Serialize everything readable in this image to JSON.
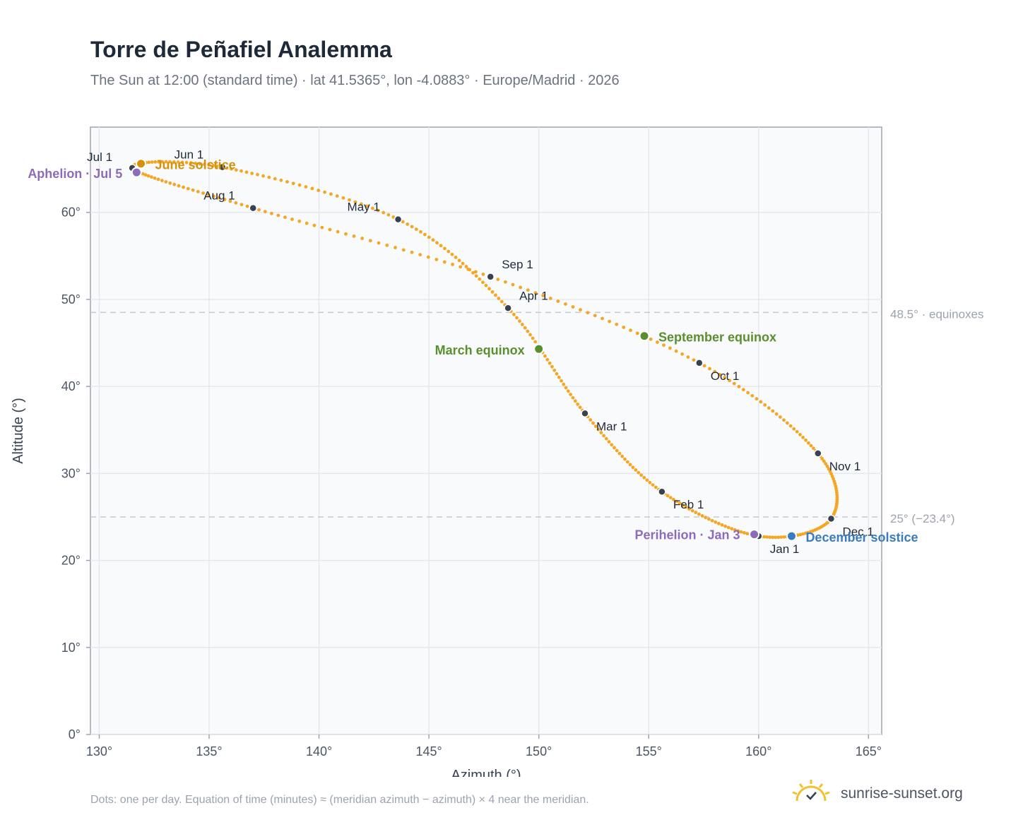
{
  "title": "Torre de Peñafiel Analemma",
  "subtitle": "The Sun at 12:00 (standard time) · lat 41.5365°, lon -4.0883° · Europe/Madrid · 2026",
  "footnote": "Dots: one per day. Equation of time (minutes) ≈ (meridian azimuth − azimuth) × 4 near the meridian.",
  "brand": "sunrise-sunset.org",
  "colors": {
    "path": "#f5a623",
    "month_marker": "#374151",
    "aphelion": "#8e6bb8",
    "june_solstice": "#d4920a",
    "march_equinox": "#5a8f2e",
    "september_equinox": "#5a8f2e",
    "december_solstice": "#3b7bbf",
    "reference_line": "#c4c9d1",
    "plot_bg": "#f8fafc",
    "grid": "#e5e9ef"
  },
  "chart_data": {
    "type": "scatter",
    "xlabel": "Azimuth (°)",
    "ylabel": "Altitude (°)",
    "xlim": [
      129.6,
      165.6
    ],
    "ylim": [
      0,
      69.8
    ],
    "xticks": [
      130,
      135,
      140,
      145,
      150,
      155,
      160,
      165
    ],
    "yticks": [
      0,
      10,
      20,
      30,
      40,
      50,
      60
    ],
    "tick_suffix": "°",
    "grid": true,
    "months": [
      {
        "label": "Jan 1",
        "az": 160.0,
        "alt": 22.8
      },
      {
        "label": "Feb 1",
        "az": 155.6,
        "alt": 27.9
      },
      {
        "label": "Mar 1",
        "az": 152.1,
        "alt": 36.9
      },
      {
        "label": "Apr 1",
        "az": 148.6,
        "alt": 49.0
      },
      {
        "label": "May 1",
        "az": 143.6,
        "alt": 59.2
      },
      {
        "label": "Jun 1",
        "az": 135.6,
        "alt": 65.2
      },
      {
        "label": "Jul 1",
        "az": 131.5,
        "alt": 65.1
      },
      {
        "label": "Aug 1",
        "az": 137.0,
        "alt": 60.5
      },
      {
        "label": "Sep 1",
        "az": 147.8,
        "alt": 52.6
      },
      {
        "label": "Oct 1",
        "az": 157.3,
        "alt": 42.7
      },
      {
        "label": "Nov 1",
        "az": 162.7,
        "alt": 32.3
      },
      {
        "label": "Dec 1",
        "az": 163.3,
        "alt": 24.8
      }
    ],
    "events": [
      {
        "label": "Aphelion · Jul 5",
        "az": 131.7,
        "alt": 64.6,
        "color_key": "aphelion"
      },
      {
        "label": "June solstice",
        "az": 131.9,
        "alt": 65.6,
        "color_key": "june_solstice"
      },
      {
        "label": "March equinox",
        "az": 150.0,
        "alt": 44.3,
        "color_key": "march_equinox"
      },
      {
        "label": "September equinox",
        "az": 154.8,
        "alt": 45.8,
        "color_key": "september_equinox"
      },
      {
        "label": "Perihelion · Jan 3",
        "az": 159.8,
        "alt": 23.0,
        "color_key": "aphelion"
      },
      {
        "label": "December solstice",
        "az": 161.5,
        "alt": 22.8,
        "color_key": "december_solstice"
      }
    ],
    "reference_lines": [
      {
        "alt": 48.5,
        "label": "48.5° · equinoxes"
      },
      {
        "alt": 25,
        "label": "25° (−23.4°)"
      }
    ]
  }
}
